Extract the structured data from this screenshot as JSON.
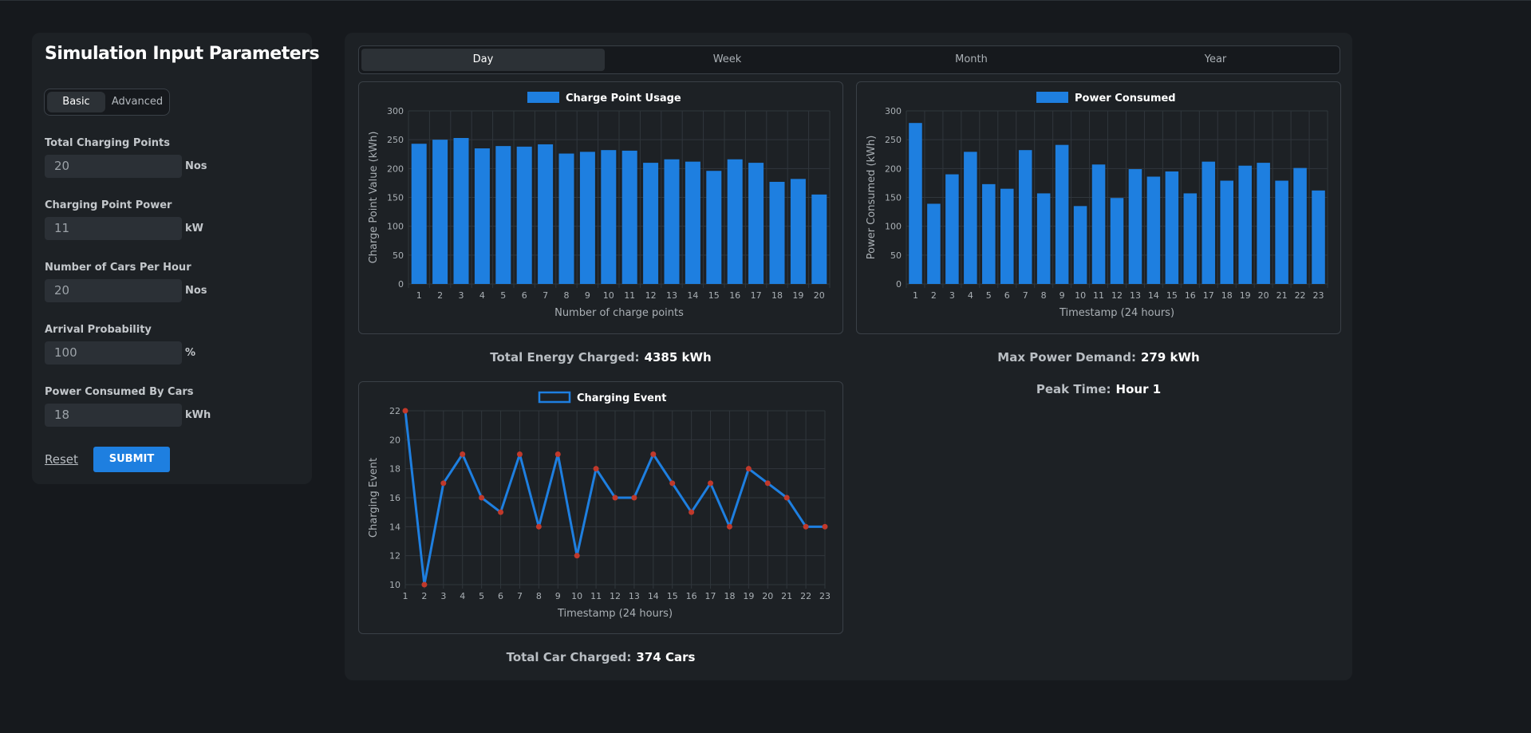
{
  "sidebar": {
    "title": "Simulation Input Parameters",
    "mode_tabs": [
      "Basic",
      "Advanced"
    ],
    "fields": [
      {
        "label": "Total Charging Points",
        "value": "20",
        "unit": "Nos"
      },
      {
        "label": "Charging Point Power",
        "value": "11",
        "unit": "kW"
      },
      {
        "label": "Number of Cars Per Hour",
        "value": "20",
        "unit": "Nos"
      },
      {
        "label": "Arrival Probability",
        "value": "100",
        "unit": "%"
      },
      {
        "label": "Power Consumed By Cars",
        "value": "18",
        "unit": "kWh"
      }
    ],
    "reset_label": "Reset",
    "submit_label": "SUBMIT"
  },
  "period_tabs": [
    "Day",
    "Week",
    "Month",
    "Year"
  ],
  "stats": {
    "total_energy": {
      "label": "Total Energy Charged:",
      "value": "4385 kWh"
    },
    "max_power": {
      "label": "Max Power Demand:",
      "value": "279 kWh"
    },
    "peak_time": {
      "label": "Peak Time:",
      "value": "Hour 1"
    },
    "total_cars": {
      "label": "Total Car Charged:",
      "value": "374 Cars"
    }
  },
  "colors": {
    "accent": "#1e7fe0",
    "point": "#c0392b"
  },
  "chart_data": [
    {
      "type": "bar",
      "legend": "Charge Point Usage",
      "categories": [
        "1",
        "2",
        "3",
        "4",
        "5",
        "6",
        "7",
        "8",
        "9",
        "10",
        "11",
        "12",
        "13",
        "14",
        "15",
        "16",
        "17",
        "18",
        "19",
        "20"
      ],
      "values": [
        243,
        250,
        253,
        235,
        239,
        238,
        242,
        226,
        229,
        232,
        231,
        210,
        216,
        212,
        196,
        216,
        210,
        177,
        182,
        155
      ],
      "xlabel": "Number of charge points",
      "ylabel": "Charge Point Value (kWh)",
      "ylim": [
        0,
        300
      ],
      "yticks": [
        0,
        50,
        100,
        150,
        200,
        250,
        300
      ]
    },
    {
      "type": "bar",
      "legend": "Power Consumed",
      "categories": [
        "1",
        "2",
        "3",
        "4",
        "5",
        "6",
        "7",
        "8",
        "9",
        "10",
        "11",
        "12",
        "13",
        "14",
        "15",
        "16",
        "17",
        "18",
        "19",
        "20",
        "21",
        "22",
        "23"
      ],
      "values": [
        279,
        139,
        190,
        229,
        173,
        165,
        232,
        157,
        241,
        135,
        207,
        149,
        199,
        186,
        195,
        157,
        212,
        179,
        205,
        210,
        179,
        201,
        162
      ],
      "xlabel": "Timestamp (24 hours)",
      "ylabel": "Power Consumed (kWh)",
      "ylim": [
        0,
        300
      ],
      "yticks": [
        0,
        50,
        100,
        150,
        200,
        250,
        300
      ]
    },
    {
      "type": "line",
      "legend": "Charging Event",
      "categories": [
        "1",
        "2",
        "3",
        "4",
        "5",
        "6",
        "7",
        "8",
        "9",
        "10",
        "11",
        "12",
        "13",
        "14",
        "15",
        "16",
        "17",
        "18",
        "19",
        "20",
        "21",
        "22",
        "23"
      ],
      "values": [
        22,
        10,
        17,
        19,
        16,
        15,
        19,
        14,
        19,
        12,
        18,
        16,
        16,
        19,
        17,
        15,
        17,
        14,
        18,
        17,
        16,
        14,
        14
      ],
      "xlabel": "Timestamp (24 hours)",
      "ylabel": "Charging Event",
      "ylim": [
        10,
        22
      ],
      "yticks": [
        10,
        12,
        14,
        16,
        18,
        20,
        22
      ]
    }
  ]
}
